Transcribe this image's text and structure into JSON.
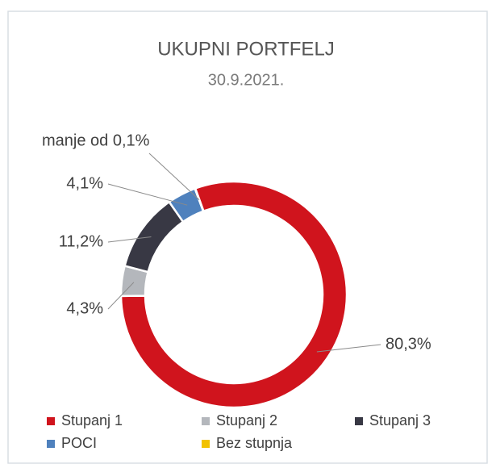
{
  "chart_data": {
    "type": "pie",
    "title": "UKUPNI PORTFELJ",
    "subtitle": "30.9.2021.",
    "categories": [
      "Stupanj 1",
      "Stupanj 2",
      "Stupanj 3",
      "POCI",
      "Bez stupnja"
    ],
    "values": [
      80.3,
      4.3,
      11.2,
      4.1,
      0.05
    ],
    "value_labels": [
      "80,3%",
      "4,3%",
      "11,2%",
      "4,1%",
      "manje od 0,1%"
    ],
    "colors": [
      "#d0141d",
      "#b4b7bc",
      "#383844",
      "#4f81bd",
      "#f2c200"
    ],
    "donut": true,
    "legend": "bottom"
  }
}
